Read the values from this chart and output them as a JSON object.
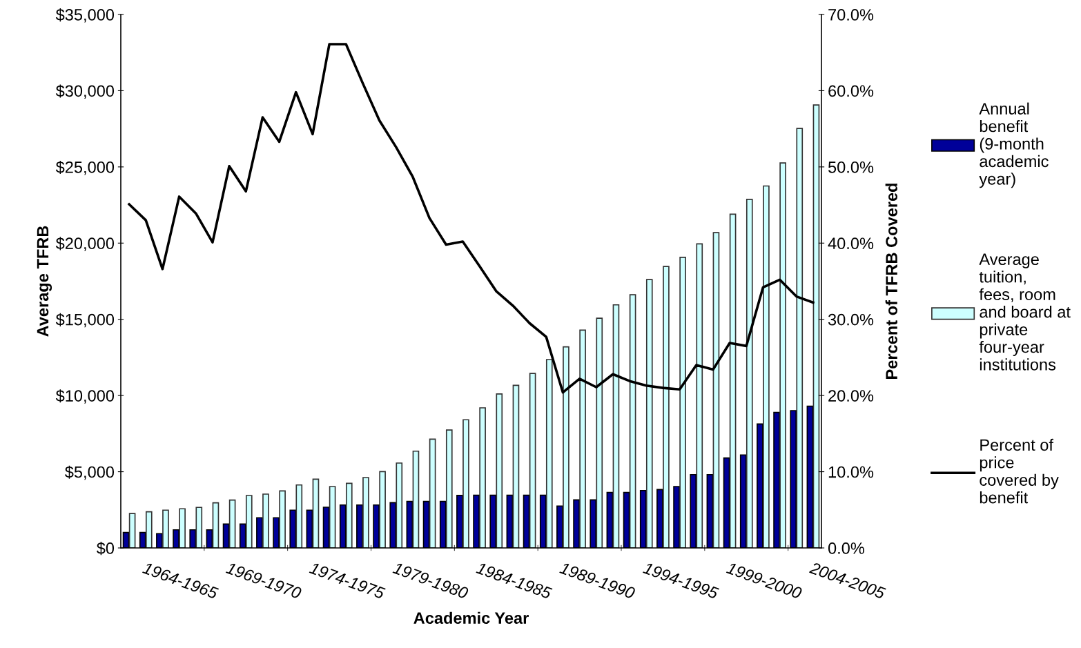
{
  "chart_data": {
    "type": "bar",
    "xlabel": "Academic Year",
    "ylabel": "Average TFRB",
    "y2label": "Percent of TFRB Covered",
    "categories": [
      null,
      "1964-1965",
      null,
      null,
      null,
      null,
      "1969-1970",
      null,
      null,
      null,
      null,
      "1974-1975",
      null,
      null,
      null,
      null,
      "1979-1980",
      null,
      null,
      null,
      null,
      "1984-1985",
      null,
      null,
      null,
      null,
      "1989-1990",
      null,
      null,
      null,
      null,
      "1994-1995",
      null,
      null,
      null,
      null,
      "1999-2000",
      null,
      null,
      null,
      null,
      "2004-2005"
    ],
    "series": [
      {
        "name": "Annual benefit (9-month academic year)",
        "color": "#000099",
        "values": [
          1010,
          1010,
          940,
          1190,
          1190,
          1190,
          1570,
          1570,
          1980,
          1980,
          2480,
          2480,
          2670,
          2820,
          2820,
          2820,
          2970,
          3050,
          3050,
          3050,
          3450,
          3460,
          3460,
          3460,
          3460,
          3460,
          2750,
          3150,
          3150,
          3640,
          3640,
          3760,
          3830,
          4030,
          4810,
          4810,
          5900,
          6100,
          8130,
          8890,
          9010,
          9300
        ]
      },
      {
        "name": "Average tuition, fees, room and board at private four-year institutions",
        "color": "#ccffff",
        "values": [
          2260,
          2370,
          2480,
          2570,
          2660,
          2960,
          3140,
          3440,
          3530,
          3740,
          4130,
          4510,
          4030,
          4240,
          4620,
          5010,
          5570,
          6350,
          7140,
          7740,
          8410,
          9190,
          10100,
          10670,
          11450,
          12360,
          13190,
          14290,
          15070,
          15950,
          16610,
          17610,
          18470,
          19070,
          19950,
          20690,
          21900,
          22870,
          23750,
          25260,
          27520,
          29060
        ]
      },
      {
        "name": "Percent of price covered by benefit",
        "type": "line",
        "axis": "y2",
        "color": "#000000",
        "values": [
          45.1,
          43.0,
          36.6,
          46.1,
          43.9,
          40.1,
          50.1,
          46.8,
          56.5,
          53.3,
          59.8,
          54.3,
          66.1,
          66.1,
          61.0,
          56.1,
          52.6,
          48.7,
          43.3,
          39.8,
          40.2,
          37.0,
          33.7,
          31.8,
          29.5,
          27.7,
          20.4,
          22.2,
          21.1,
          22.8,
          21.9,
          21.3,
          21.0,
          20.8,
          24.0,
          23.4,
          26.9,
          26.5,
          34.2,
          35.2,
          33.0,
          32.2
        ]
      }
    ],
    "ylim": [
      0,
      35000
    ],
    "yticks": [
      {
        "value": 0,
        "label": "$0"
      },
      {
        "value": 5000,
        "label": "$5,000"
      },
      {
        "value": 10000,
        "label": "$10,000"
      },
      {
        "value": 15000,
        "label": "$15,000"
      },
      {
        "value": 20000,
        "label": "$20,000"
      },
      {
        "value": 25000,
        "label": "$25,000"
      },
      {
        "value": 30000,
        "label": "$30,000"
      },
      {
        "value": 35000,
        "label": "$35,000"
      }
    ],
    "y2lim": [
      0,
      70
    ],
    "y2ticks": [
      {
        "value": 0,
        "label": "0.0%"
      },
      {
        "value": 10,
        "label": "10.0%"
      },
      {
        "value": 20,
        "label": "20.0%"
      },
      {
        "value": 30,
        "label": "30.0%"
      },
      {
        "value": 40,
        "label": "40.0%"
      },
      {
        "value": 50,
        "label": "50.0%"
      },
      {
        "value": 60,
        "label": "60.0%"
      },
      {
        "value": 70,
        "label": "70.0%"
      }
    ],
    "legend": "right",
    "grid": false,
    "marker": "none",
    "line_style": "solid"
  }
}
